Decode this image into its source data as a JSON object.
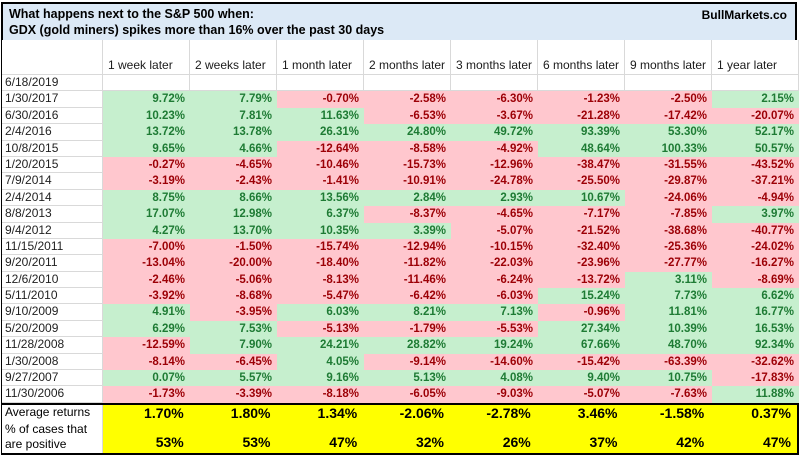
{
  "title": {
    "line1": "What happens next to the S&P 500 when:",
    "line2": "GDX (gold miners) spikes more than 16% over the past 30 days",
    "brand": "BullMarkets.co"
  },
  "colors": {
    "title_bg": "#dce9f6",
    "positive_bg": "#c6efce",
    "positive_text": "#1e7b34",
    "negative_bg": "#ffc7ce",
    "negative_text": "#9c0006",
    "summary_bg": "#ffff00",
    "border": "#000000",
    "gridline": "#d9d9d9"
  },
  "chart_data": {
    "type": "table",
    "title": "What happens next to the S&P 500 when: GDX (gold miners) spikes more than 16% over the past 30 days",
    "columns": [
      "1 week later",
      "2 weeks later",
      "1 month later",
      "2 months later",
      "3 months later",
      "6 months later",
      "9 months later",
      "1 year later"
    ],
    "rows": [
      {
        "date": "6/18/2019",
        "values": [
          "",
          "",
          "",
          "",
          "",
          "",
          "",
          ""
        ]
      },
      {
        "date": "1/30/2017",
        "values": [
          "9.72%",
          "7.79%",
          "-0.70%",
          "-2.58%",
          "-6.30%",
          "-1.23%",
          "-2.50%",
          "2.15%"
        ]
      },
      {
        "date": "6/30/2016",
        "values": [
          "10.23%",
          "7.81%",
          "11.63%",
          "-6.53%",
          "-3.67%",
          "-21.28%",
          "-17.42%",
          "-20.07%"
        ]
      },
      {
        "date": "2/4/2016",
        "values": [
          "13.72%",
          "13.78%",
          "26.31%",
          "24.80%",
          "49.72%",
          "93.39%",
          "53.30%",
          "52.17%"
        ]
      },
      {
        "date": "10/8/2015",
        "values": [
          "9.65%",
          "4.66%",
          "-12.64%",
          "-8.58%",
          "-4.92%",
          "48.64%",
          "100.33%",
          "50.57%"
        ]
      },
      {
        "date": "1/20/2015",
        "values": [
          "-0.27%",
          "-4.65%",
          "-10.46%",
          "-15.73%",
          "-12.96%",
          "-38.47%",
          "-31.55%",
          "-43.52%"
        ]
      },
      {
        "date": "7/9/2014",
        "values": [
          "-3.19%",
          "-2.43%",
          "-1.41%",
          "-10.91%",
          "-24.78%",
          "-25.50%",
          "-29.87%",
          "-37.21%"
        ]
      },
      {
        "date": "2/4/2014",
        "values": [
          "8.75%",
          "8.66%",
          "13.56%",
          "2.84%",
          "2.93%",
          "10.67%",
          "-24.06%",
          "-4.94%"
        ]
      },
      {
        "date": "8/8/2013",
        "values": [
          "17.07%",
          "12.98%",
          "6.37%",
          "-8.37%",
          "-4.65%",
          "-7.17%",
          "-7.85%",
          "3.97%"
        ]
      },
      {
        "date": "9/4/2012",
        "values": [
          "4.27%",
          "13.70%",
          "10.35%",
          "3.39%",
          "-5.07%",
          "-21.52%",
          "-38.68%",
          "-40.77%"
        ]
      },
      {
        "date": "11/15/2011",
        "values": [
          "-7.00%",
          "-1.50%",
          "-15.74%",
          "-12.94%",
          "-10.15%",
          "-32.40%",
          "-25.36%",
          "-24.02%"
        ]
      },
      {
        "date": "9/20/2011",
        "values": [
          "-13.04%",
          "-20.00%",
          "-18.40%",
          "-11.82%",
          "-22.03%",
          "-23.96%",
          "-27.77%",
          "-16.27%"
        ]
      },
      {
        "date": "12/6/2010",
        "values": [
          "-2.46%",
          "-5.06%",
          "-8.13%",
          "-11.46%",
          "-6.24%",
          "-13.72%",
          "3.11%",
          "-8.69%"
        ]
      },
      {
        "date": "5/11/2010",
        "values": [
          "-3.92%",
          "-8.68%",
          "-5.47%",
          "-6.42%",
          "-6.03%",
          "15.24%",
          "7.73%",
          "6.62%"
        ]
      },
      {
        "date": "9/10/2009",
        "values": [
          "4.91%",
          "-3.95%",
          "6.03%",
          "8.21%",
          "7.13%",
          "-0.96%",
          "11.81%",
          "16.77%"
        ]
      },
      {
        "date": "5/20/2009",
        "values": [
          "6.29%",
          "7.53%",
          "-5.13%",
          "-1.79%",
          "-5.53%",
          "27.34%",
          "10.39%",
          "16.53%"
        ]
      },
      {
        "date": "11/28/2008",
        "values": [
          "-12.59%",
          "7.90%",
          "24.21%",
          "28.82%",
          "19.24%",
          "67.66%",
          "48.70%",
          "92.34%"
        ]
      },
      {
        "date": "1/30/2008",
        "values": [
          "-8.14%",
          "-6.45%",
          "4.05%",
          "-9.14%",
          "-14.60%",
          "-15.42%",
          "-63.39%",
          "-32.62%"
        ]
      },
      {
        "date": "9/27/2007",
        "values": [
          "0.07%",
          "5.57%",
          "9.16%",
          "5.13%",
          "4.08%",
          "9.40%",
          "10.75%",
          "-17.83%"
        ]
      },
      {
        "date": "11/30/2006",
        "values": [
          "-1.73%",
          "-3.39%",
          "-8.18%",
          "-6.05%",
          "-9.03%",
          "-5.07%",
          "-7.63%",
          "11.88%"
        ]
      }
    ],
    "summary_rows": [
      {
        "id": "average-returns-row",
        "label": "Average returns",
        "values": [
          "1.70%",
          "1.80%",
          "1.34%",
          "-2.06%",
          "-2.78%",
          "3.46%",
          "-1.58%",
          "0.37%"
        ]
      },
      {
        "id": "percent-positive-row",
        "label": "% of cases that are positive",
        "values": [
          "53%",
          "53%",
          "47%",
          "32%",
          "26%",
          "37%",
          "42%",
          "47%"
        ]
      }
    ]
  }
}
